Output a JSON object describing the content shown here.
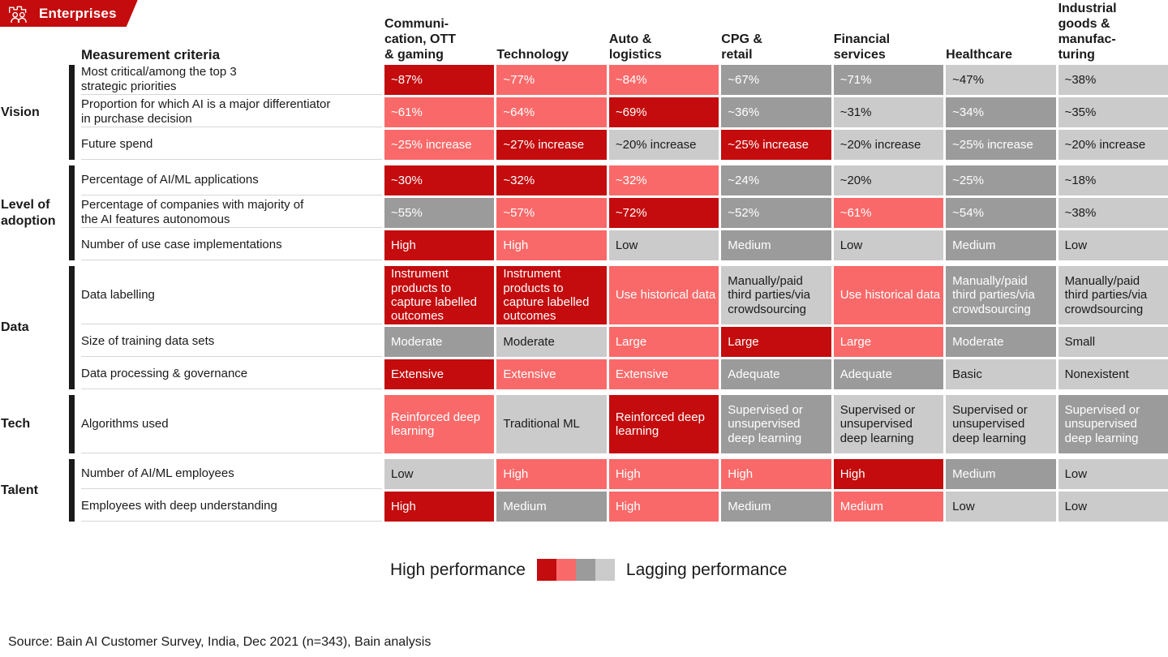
{
  "badge": {
    "label": "Enterprises",
    "icon": "enterprise-people-icon"
  },
  "colors": {
    "high": "#c40b0d",
    "mid_high": "#fa6969",
    "mid_low": "#9b9b9b",
    "low": "#cbcbcb",
    "badge_bg": "#c40b0d",
    "group_bar": "#1a1a1a",
    "text_dark": "#1a1a1a",
    "text_light": "#ffffff"
  },
  "chart_data": {
    "type": "heatmap",
    "criteria_header": "Measurement criteria",
    "columns": [
      "Communi-\ncation, OTT\n& gaming",
      "Technology",
      "Auto &\nlogistics",
      "CPG &\nretail",
      "Financial\nservices",
      "Healthcare",
      "Industrial\ngoods &\nmanufac-\nturing"
    ],
    "level_meaning": {
      "high": "high performance (dark red)",
      "mid_high": "salmon red",
      "mid_low": "dark gray",
      "low": "lagging performance (light gray)"
    },
    "row_groups": [
      {
        "group": "Vision",
        "rows": [
          {
            "criteria": "Most critical/among the top 3\nstrategic priorities",
            "tall": false,
            "cells": [
              {
                "text": "~87%",
                "level": "high"
              },
              {
                "text": "~77%",
                "level": "mid_high"
              },
              {
                "text": "~84%",
                "level": "mid_high"
              },
              {
                "text": "~67%",
                "level": "mid_low"
              },
              {
                "text": "~71%",
                "level": "mid_low"
              },
              {
                "text": "~47%",
                "level": "low"
              },
              {
                "text": "~38%",
                "level": "low"
              }
            ]
          },
          {
            "criteria": "Proportion for which AI is a major differentiator\nin purchase decision",
            "tall": false,
            "cells": [
              {
                "text": "~61%",
                "level": "mid_high"
              },
              {
                "text": "~64%",
                "level": "mid_high"
              },
              {
                "text": "~69%",
                "level": "high"
              },
              {
                "text": "~36%",
                "level": "mid_low"
              },
              {
                "text": "~31%",
                "level": "low"
              },
              {
                "text": "~34%",
                "level": "mid_low"
              },
              {
                "text": "~35%",
                "level": "low"
              }
            ]
          },
          {
            "criteria": "Future spend",
            "tall": false,
            "cells": [
              {
                "text": "~25% increase",
                "level": "mid_high"
              },
              {
                "text": "~27% increase",
                "level": "high"
              },
              {
                "text": "~20% increase",
                "level": "low"
              },
              {
                "text": "~25% increase",
                "level": "high"
              },
              {
                "text": "~20% increase",
                "level": "low"
              },
              {
                "text": "~25% increase",
                "level": "mid_low"
              },
              {
                "text": "~20% increase",
                "level": "low"
              }
            ]
          }
        ]
      },
      {
        "group": "Level of\nadoption",
        "rows": [
          {
            "criteria": "Percentage of AI/ML applications",
            "tall": false,
            "cells": [
              {
                "text": "~30%",
                "level": "high"
              },
              {
                "text": "~32%",
                "level": "high"
              },
              {
                "text": "~32%",
                "level": "mid_high"
              },
              {
                "text": "~24%",
                "level": "mid_low"
              },
              {
                "text": "~20%",
                "level": "low"
              },
              {
                "text": "~25%",
                "level": "mid_low"
              },
              {
                "text": "~18%",
                "level": "low"
              }
            ]
          },
          {
            "criteria": "Percentage of companies with majority of\nthe AI features autonomous",
            "tall": false,
            "cells": [
              {
                "text": "~55%",
                "level": "mid_low"
              },
              {
                "text": "~57%",
                "level": "mid_high"
              },
              {
                "text": "~72%",
                "level": "high"
              },
              {
                "text": "~52%",
                "level": "mid_low"
              },
              {
                "text": "~61%",
                "level": "mid_high"
              },
              {
                "text": "~54%",
                "level": "mid_low"
              },
              {
                "text": "~38%",
                "level": "low"
              }
            ]
          },
          {
            "criteria": "Number of use case implementations",
            "tall": false,
            "cells": [
              {
                "text": "High",
                "level": "high"
              },
              {
                "text": "High",
                "level": "mid_high"
              },
              {
                "text": "Low",
                "level": "low"
              },
              {
                "text": "Medium",
                "level": "mid_low"
              },
              {
                "text": "Low",
                "level": "low"
              },
              {
                "text": "Medium",
                "level": "mid_low"
              },
              {
                "text": "Low",
                "level": "low"
              }
            ]
          }
        ]
      },
      {
        "group": "Data",
        "rows": [
          {
            "criteria": "Data labelling",
            "tall": true,
            "cells": [
              {
                "text": "Instrument products to capture labelled outcomes",
                "level": "high"
              },
              {
                "text": "Instrument products to capture labelled outcomes",
                "level": "high"
              },
              {
                "text": "Use historical data",
                "level": "mid_high"
              },
              {
                "text": "Manually/paid third parties/via crowdsourcing",
                "level": "low"
              },
              {
                "text": "Use historical data",
                "level": "mid_high"
              },
              {
                "text": "Manually/paid third parties/via crowdsourcing",
                "level": "mid_low"
              },
              {
                "text": "Manually/paid third parties/via crowdsourcing",
                "level": "low"
              }
            ]
          },
          {
            "criteria": "Size of training data sets",
            "tall": false,
            "cells": [
              {
                "text": "Moderate",
                "level": "mid_low"
              },
              {
                "text": "Moderate",
                "level": "low"
              },
              {
                "text": "Large",
                "level": "mid_high"
              },
              {
                "text": "Large",
                "level": "high"
              },
              {
                "text": "Large",
                "level": "mid_high"
              },
              {
                "text": "Moderate",
                "level": "mid_low"
              },
              {
                "text": "Small",
                "level": "low"
              }
            ]
          },
          {
            "criteria": "Data processing & governance",
            "tall": false,
            "cells": [
              {
                "text": "Extensive",
                "level": "high"
              },
              {
                "text": "Extensive",
                "level": "mid_high"
              },
              {
                "text": "Extensive",
                "level": "mid_high"
              },
              {
                "text": "Adequate",
                "level": "mid_low"
              },
              {
                "text": "Adequate",
                "level": "mid_low"
              },
              {
                "text": "Basic",
                "level": "low"
              },
              {
                "text": "Nonexistent",
                "level": "low"
              }
            ]
          }
        ]
      },
      {
        "group": "Tech",
        "rows": [
          {
            "criteria": "Algorithms used",
            "tall": true,
            "cells": [
              {
                "text": "Reinforced deep learning",
                "level": "mid_high"
              },
              {
                "text": "Traditional ML",
                "level": "low"
              },
              {
                "text": "Reinforced deep learning",
                "level": "high"
              },
              {
                "text": "Supervised or unsupervised deep learning",
                "level": "mid_low"
              },
              {
                "text": "Supervised or unsupervised deep learning",
                "level": "low"
              },
              {
                "text": "Supervised or unsupervised deep learning",
                "level": "low"
              },
              {
                "text": "Supervised or unsupervised deep learning",
                "level": "mid_low"
              }
            ]
          }
        ]
      },
      {
        "group": "Talent",
        "rows": [
          {
            "criteria": "Number of AI/ML employees",
            "tall": false,
            "cells": [
              {
                "text": "Low",
                "level": "low"
              },
              {
                "text": "High",
                "level": "mid_high"
              },
              {
                "text": "High",
                "level": "mid_high"
              },
              {
                "text": "High",
                "level": "mid_high"
              },
              {
                "text": "High",
                "level": "high"
              },
              {
                "text": "Medium",
                "level": "mid_low"
              },
              {
                "text": "Low",
                "level": "low"
              }
            ]
          },
          {
            "criteria": "Employees with deep understanding",
            "tall": false,
            "cells": [
              {
                "text": "High",
                "level": "high"
              },
              {
                "text": "Medium",
                "level": "mid_low"
              },
              {
                "text": "High",
                "level": "mid_high"
              },
              {
                "text": "Medium",
                "level": "mid_low"
              },
              {
                "text": "Medium",
                "level": "mid_high"
              },
              {
                "text": "Low",
                "level": "low"
              },
              {
                "text": "Low",
                "level": "low"
              }
            ]
          }
        ]
      }
    ],
    "legend": {
      "high_label": "High performance",
      "low_label": "Lagging performance",
      "levels": [
        "high",
        "mid_high",
        "mid_low",
        "low"
      ]
    },
    "source": "Source: Bain AI Customer Survey, India, Dec 2021 (n=343), Bain analysis"
  }
}
